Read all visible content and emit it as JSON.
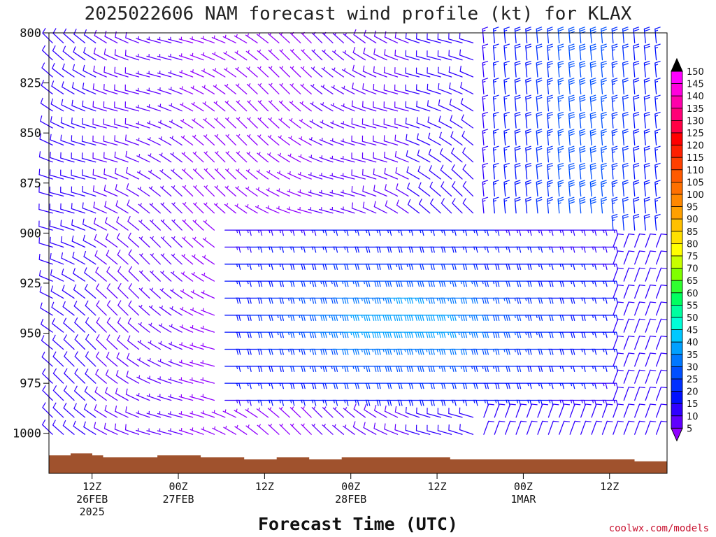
{
  "chart_data": {
    "type": "wind-barb",
    "title": "2025022606 NAM forecast wind profile (kt) for KLAX",
    "xlabel": "Forecast Time (UTC)",
    "ylabel": "",
    "y_unit": "hPa",
    "ylim": [
      1020,
      800
    ],
    "y_ticks": [
      800,
      825,
      850,
      875,
      900,
      925,
      950,
      975,
      1000
    ],
    "x_start": "2025-02-26T06Z",
    "x_end": "2025-03-01T20Z",
    "x_ticks": [
      {
        "time": "2025-02-26T12Z",
        "lines": [
          "12Z",
          "26FEB",
          "2025"
        ]
      },
      {
        "time": "2025-02-27T00Z",
        "lines": [
          "00Z",
          "27FEB"
        ]
      },
      {
        "time": "2025-02-27T12Z",
        "lines": [
          "12Z"
        ]
      },
      {
        "time": "2025-02-28T00Z",
        "lines": [
          "00Z",
          "28FEB"
        ]
      },
      {
        "time": "2025-02-28T12Z",
        "lines": [
          "12Z"
        ]
      },
      {
        "time": "2025-03-01T00Z",
        "lines": [
          "00Z",
          "1MAR"
        ]
      },
      {
        "time": "2025-03-01T12Z",
        "lines": [
          "12Z"
        ]
      }
    ],
    "colorbar": {
      "labels": [
        "150",
        "145",
        "140",
        "135",
        "130",
        "125",
        "120",
        "115",
        "110",
        "105",
        "100",
        "95",
        "90",
        "85",
        "80",
        "75",
        "70",
        "65",
        "60",
        "55",
        "50",
        "45",
        "40",
        "35",
        "30",
        "25",
        "20",
        "15",
        "10",
        "5"
      ],
      "colors": [
        "#ff00ff",
        "#ff00dd",
        "#ff00aa",
        "#ff0077",
        "#ff0044",
        "#ff0000",
        "#ff2000",
        "#ff4000",
        "#ff5a00",
        "#ff7000",
        "#ff8800",
        "#ffa000",
        "#ffc000",
        "#ffe000",
        "#ffff00",
        "#c8ff00",
        "#80ff00",
        "#30ff30",
        "#00ff60",
        "#00ffa0",
        "#00ffd8",
        "#00c8ff",
        "#00a0ff",
        "#0078ff",
        "#0050ff",
        "#0030ff",
        "#0010ff",
        "#3000ff",
        "#6000ff",
        "#9000ff"
      ],
      "arrows": true
    },
    "ground_color": "#a0522d",
    "surface_pressure": [
      1011,
      1011,
      1010,
      1010,
      1011,
      1012,
      1012,
      1012,
      1012,
      1012,
      1011,
      1011,
      1011,
      1011,
      1012,
      1012,
      1012,
      1012,
      1013,
      1013,
      1013,
      1012,
      1012,
      1012,
      1013,
      1013,
      1013,
      1012,
      1012,
      1012,
      1012,
      1012,
      1012,
      1012,
      1012,
      1012,
      1012,
      1013,
      1013,
      1013,
      1013,
      1013,
      1013,
      1013,
      1013,
      1013,
      1013,
      1013,
      1013,
      1013,
      1013,
      1013,
      1013,
      1013,
      1014,
      1014,
      1014
    ],
    "wind_regimes": [
      {
        "time_range": [
          "2025-02-26T06Z",
          "2025-02-27T06Z"
        ],
        "levels_hPa": [
          800,
          1000
        ],
        "direction": "W to NW",
        "speed_kt": "5-15"
      },
      {
        "time_range": [
          "2025-02-27T06Z",
          "2025-02-28T12Z"
        ],
        "levels_hPa": [
          900,
          980
        ],
        "direction": "E",
        "speed_kt": "20-40"
      },
      {
        "time_range": [
          "2025-02-28T06Z",
          "2025-02-28T22Z"
        ],
        "levels_hPa": [
          800,
          880
        ],
        "direction": "N",
        "speed_kt": "15-30"
      },
      {
        "time_range": [
          "2025-02-28T22Z",
          "2025-03-01T20Z"
        ],
        "levels_hPa": [
          800,
          1000
        ],
        "direction": "W",
        "speed_kt": "5-15"
      }
    ]
  },
  "credit": "coolwx.com/models"
}
